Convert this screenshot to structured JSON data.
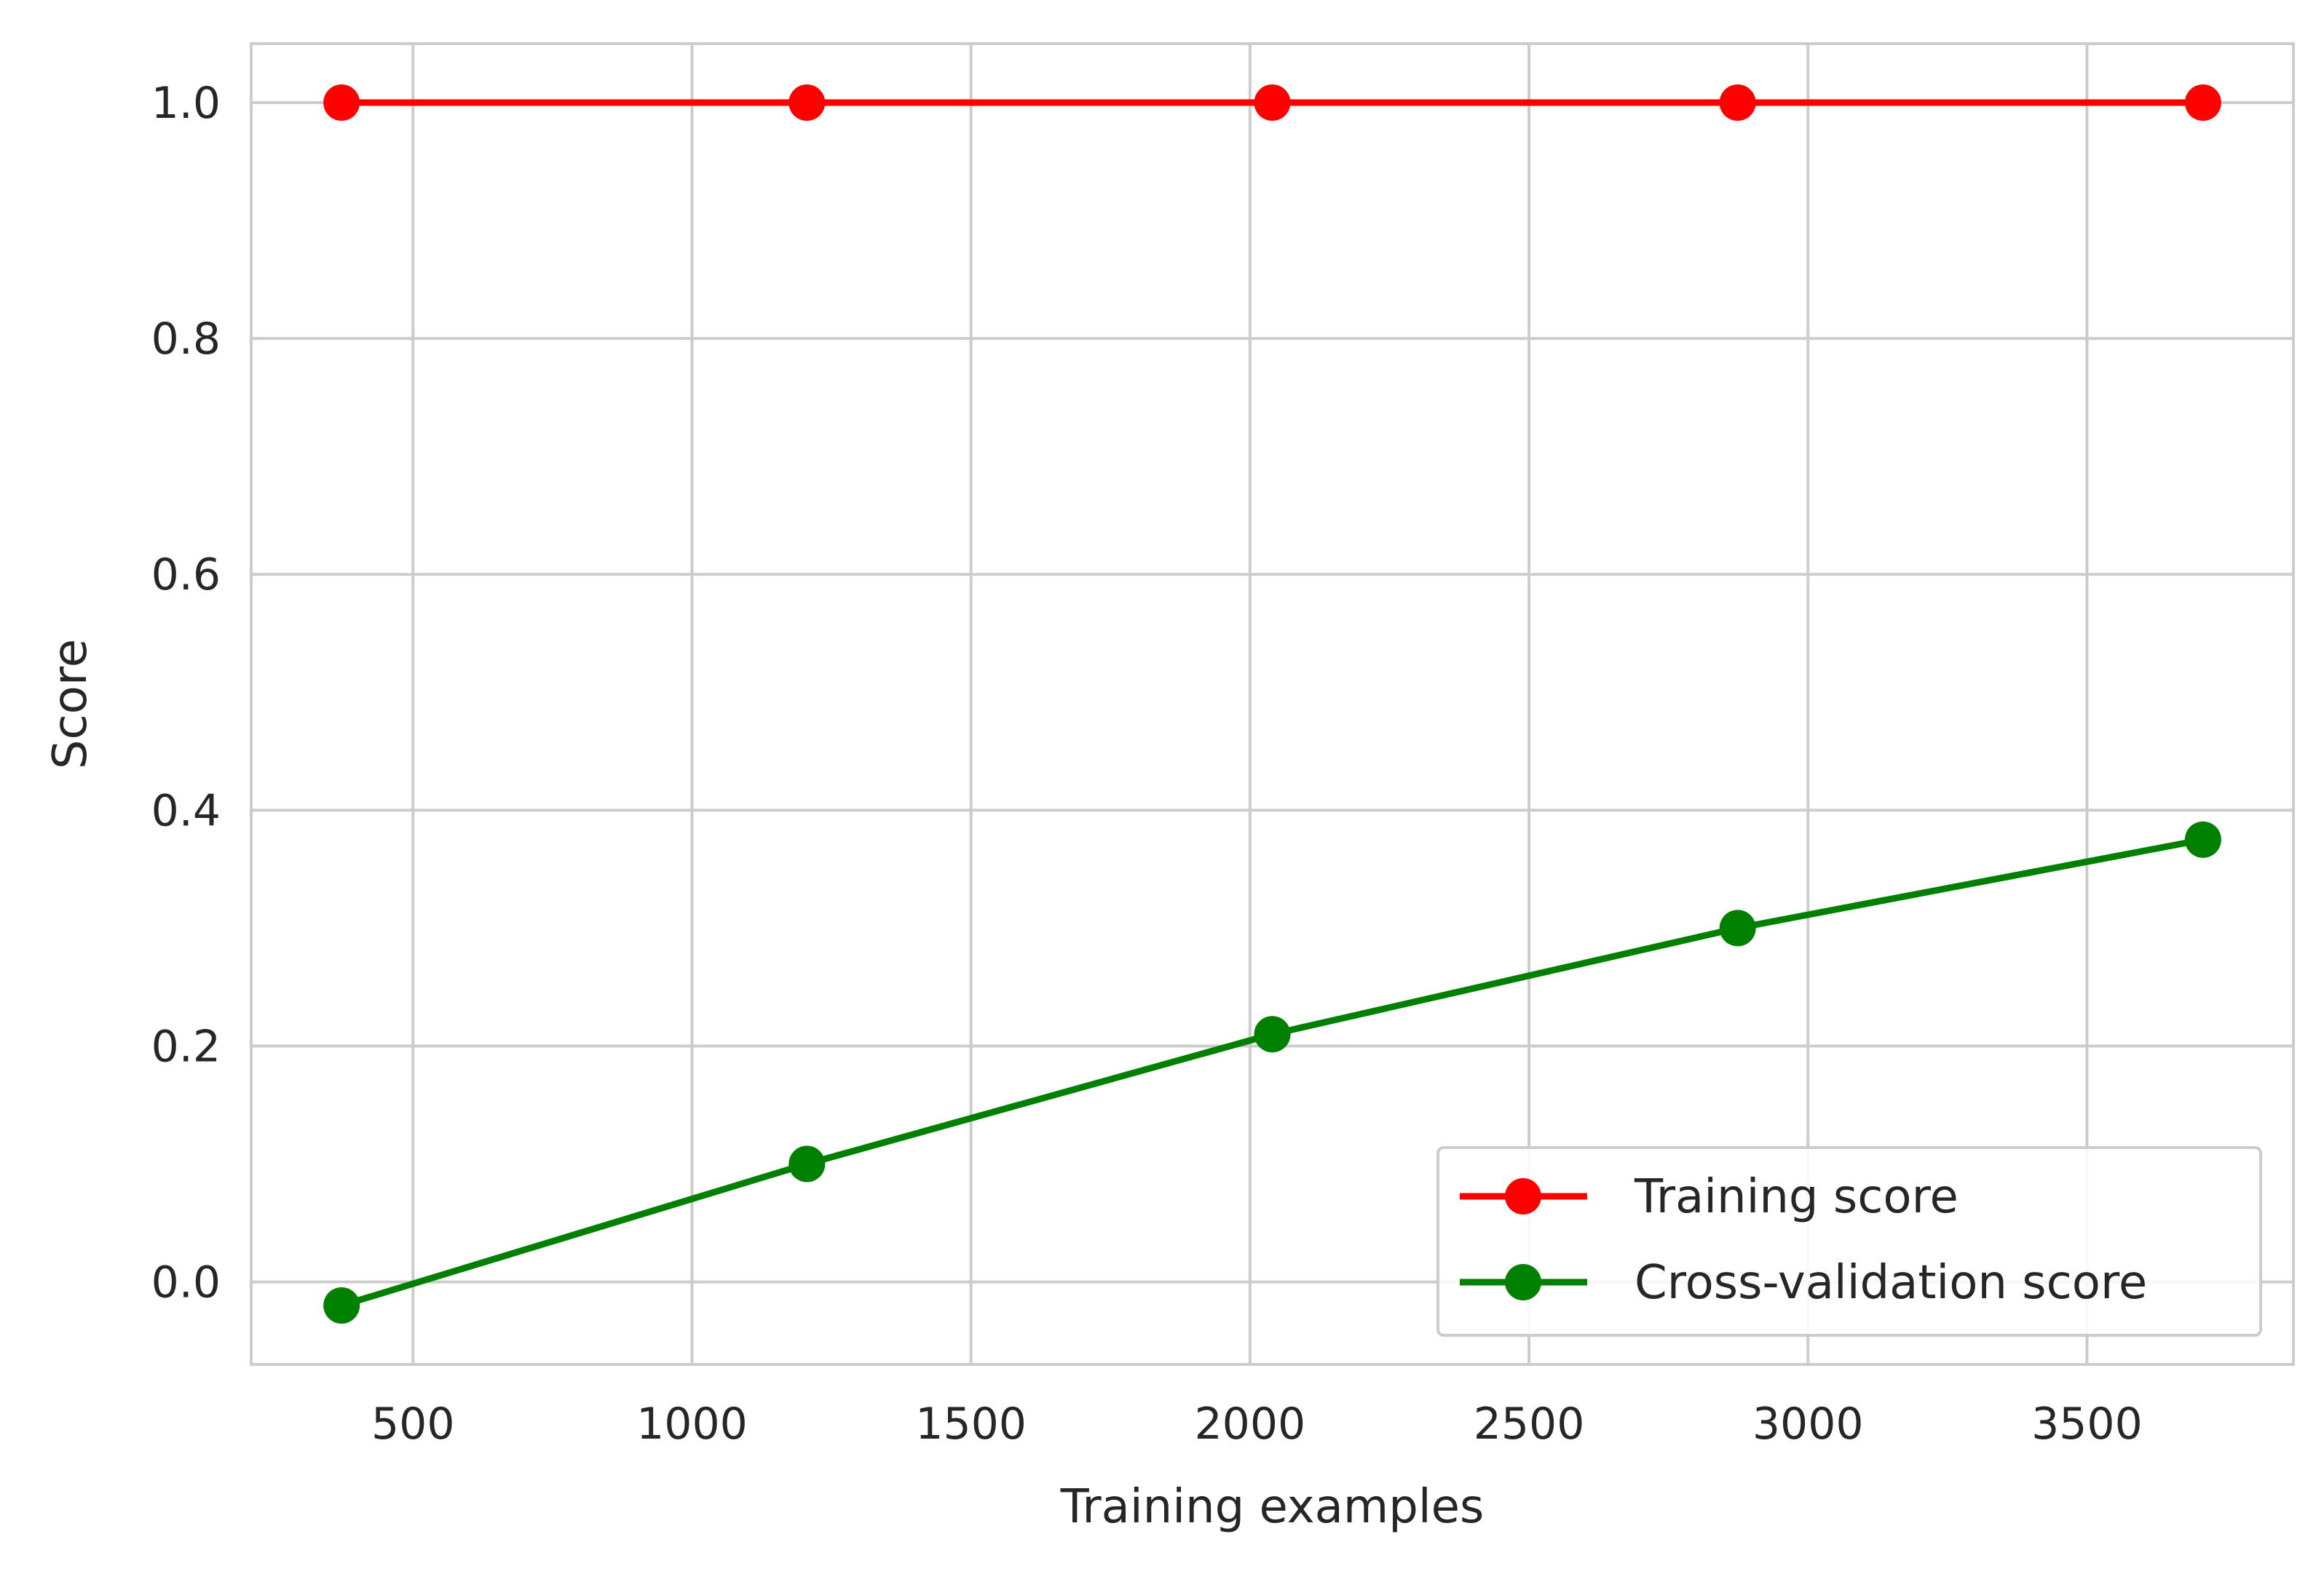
{
  "chart_data": {
    "type": "line",
    "title": "",
    "xlabel": "Training examples",
    "ylabel": "Score",
    "xlim": [
      210,
      3870
    ],
    "ylim": [
      -0.07,
      1.05
    ],
    "xticks": [
      500,
      1000,
      1500,
      2000,
      2500,
      3000,
      3500
    ],
    "yticks": [
      0.0,
      0.2,
      0.4,
      0.6,
      0.8,
      1.0
    ],
    "xtick_labels": [
      "500",
      "1000",
      "1500",
      "2000",
      "2500",
      "3000",
      "3500"
    ],
    "ytick_labels": [
      "0.0",
      "0.2",
      "0.4",
      "0.6",
      "0.8",
      "1.0"
    ],
    "grid": true,
    "legend_position": "bottom-right",
    "x": [
      372,
      1206,
      2040,
      2874,
      3708
    ],
    "series": [
      {
        "name": "Training score",
        "color": "#ff0000",
        "marker": "circle",
        "values": [
          1.0,
          1.0,
          1.0,
          1.0,
          1.0
        ]
      },
      {
        "name": "Cross-validation score",
        "color": "#008000",
        "marker": "circle",
        "values": [
          -0.02,
          0.1,
          0.21,
          0.3,
          0.375
        ]
      }
    ]
  }
}
